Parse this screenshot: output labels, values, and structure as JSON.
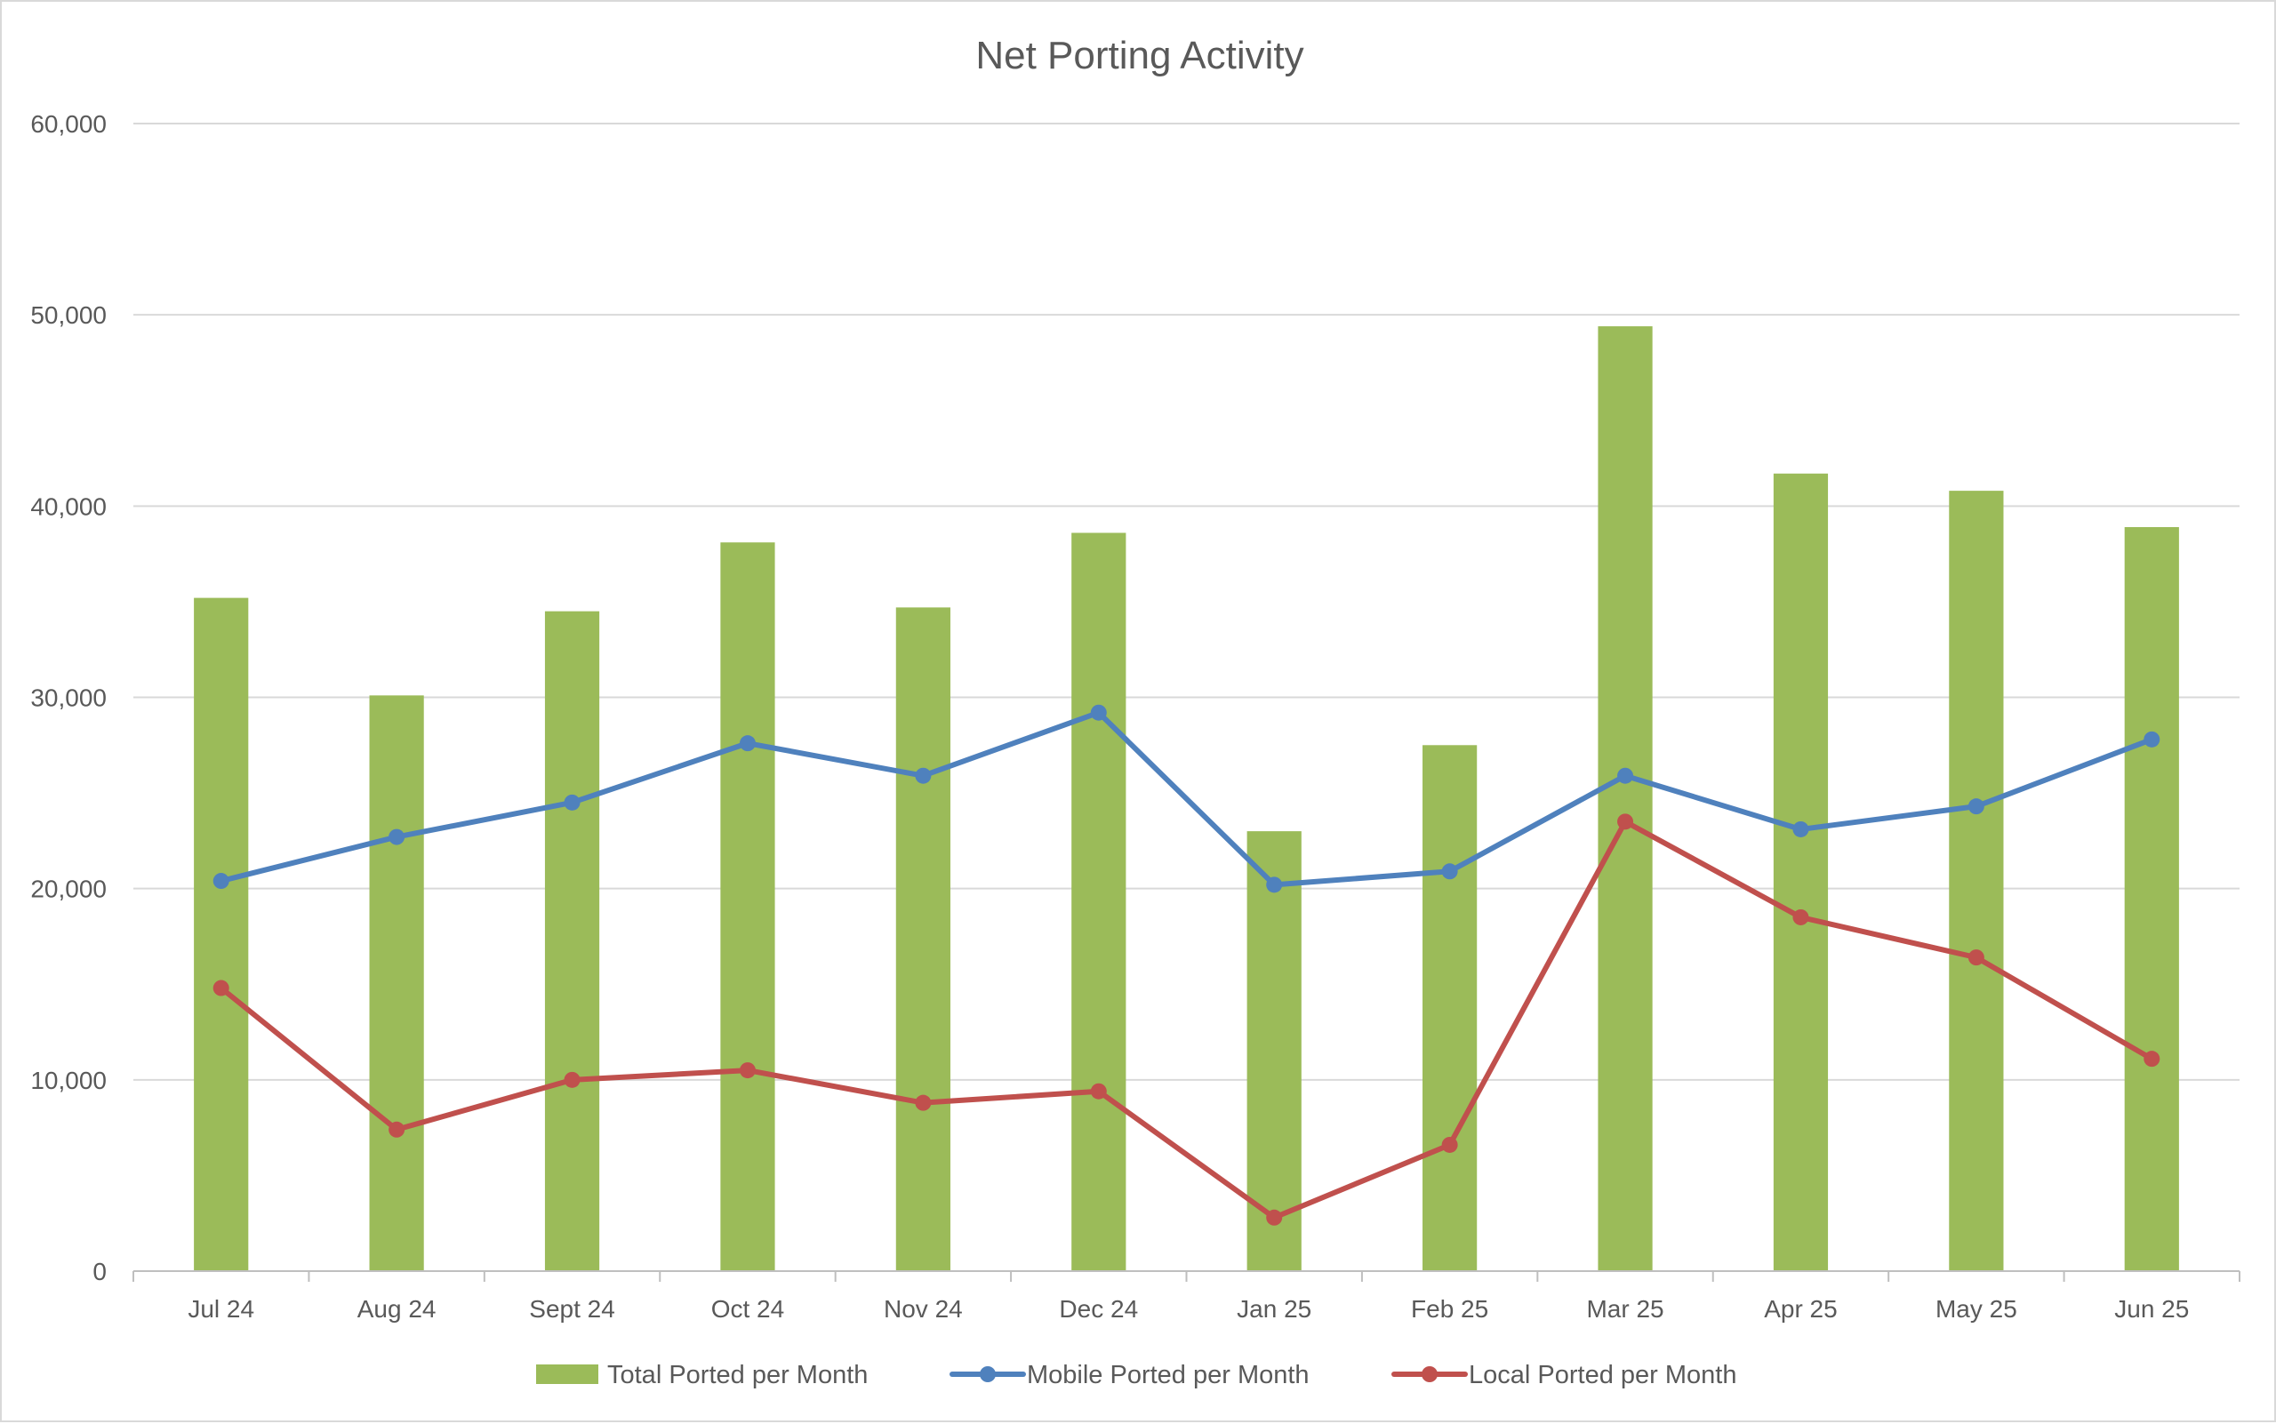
{
  "chart_data": {
    "type": "bar",
    "title": "Net Porting Activity",
    "xlabel": "",
    "ylabel": "",
    "categories": [
      "Jul 24",
      "Aug 24",
      "Sept 24",
      "Oct 24",
      "Nov 24",
      "Dec 24",
      "Jan 25",
      "Feb 25",
      "Mar 25",
      "Apr 25",
      "May 25",
      "Jun 25"
    ],
    "ylim": [
      0,
      60000
    ],
    "yticks": [
      0,
      10000,
      20000,
      30000,
      40000,
      50000,
      60000
    ],
    "ytick_labels": [
      "0",
      "10,000",
      "20,000",
      "30,000",
      "40,000",
      "50,000",
      "60,000"
    ],
    "grid": true,
    "legend_position": "bottom",
    "series": [
      {
        "name": "Total Ported per Month",
        "type": "bar",
        "color": "#9bbb59",
        "values": [
          35200,
          30100,
          34500,
          38100,
          34700,
          38600,
          23000,
          27500,
          49400,
          41700,
          40800,
          38900
        ]
      },
      {
        "name": "Mobile Ported per Month",
        "type": "line",
        "color": "#4f81bd",
        "values": [
          20400,
          22700,
          24500,
          27600,
          25900,
          29200,
          20200,
          20900,
          25900,
          23100,
          24300,
          27800
        ]
      },
      {
        "name": "Local Ported per Month",
        "type": "line",
        "color": "#c0504d",
        "values": [
          14800,
          7400,
          10000,
          10500,
          8800,
          9400,
          2800,
          6600,
          23500,
          18500,
          16400,
          11100
        ]
      }
    ]
  }
}
